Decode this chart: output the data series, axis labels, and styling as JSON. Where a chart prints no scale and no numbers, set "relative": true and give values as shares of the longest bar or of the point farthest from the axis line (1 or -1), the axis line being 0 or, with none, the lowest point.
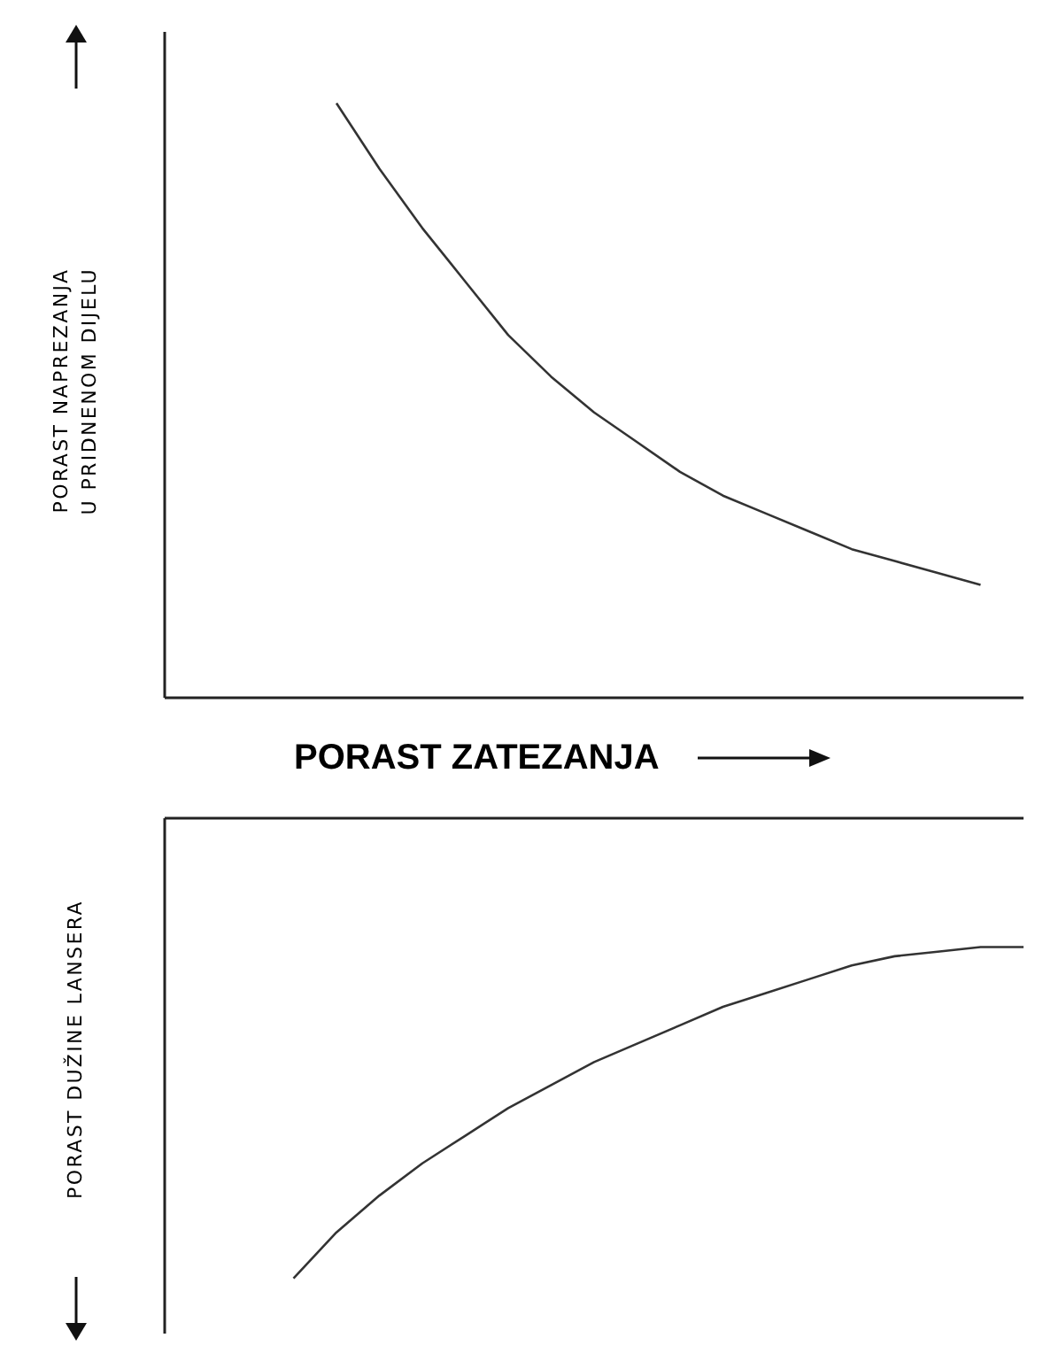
{
  "chart_data": [
    {
      "type": "line",
      "relative": true,
      "ylabel": "PORAST NAPREZANJA\nU PRIDNENOM DIJELU",
      "xlabel": "PORAST ZATEZANJA",
      "tick_labels": false,
      "categories": [
        null,
        null,
        null,
        null,
        null,
        null,
        null,
        null,
        null,
        null,
        null,
        null,
        null,
        null,
        null,
        null,
        null,
        null,
        null,
        null,
        null
      ],
      "series": [
        {
          "color": "#333333",
          "values": [
            null,
            null,
            null,
            null,
            1,
            0.89,
            0.79,
            0.7,
            0.61,
            0.54,
            0.48,
            0.43,
            0.38,
            0.34,
            0.31,
            0.28,
            0.25,
            0.23,
            0.21,
            0.19,
            null
          ]
        }
      ]
    },
    {
      "type": "line",
      "relative": true,
      "ylabel": "PORAST DUŽINE LANSERA",
      "tick_labels": false,
      "categories": [
        null,
        null,
        null,
        null,
        null,
        null,
        null,
        null,
        null,
        null,
        null,
        null,
        null,
        null,
        null,
        null,
        null,
        null,
        null,
        null,
        null
      ],
      "series": [
        {
          "color": "#333333",
          "values": [
            null,
            null,
            null,
            -1,
            -0.9,
            -0.82,
            -0.75,
            -0.69,
            -0.63,
            -0.58,
            -0.53,
            -0.49,
            -0.45,
            -0.41,
            -0.38,
            -0.35,
            -0.32,
            -0.3,
            -0.29,
            -0.28,
            -0.28
          ]
        }
      ]
    }
  ]
}
